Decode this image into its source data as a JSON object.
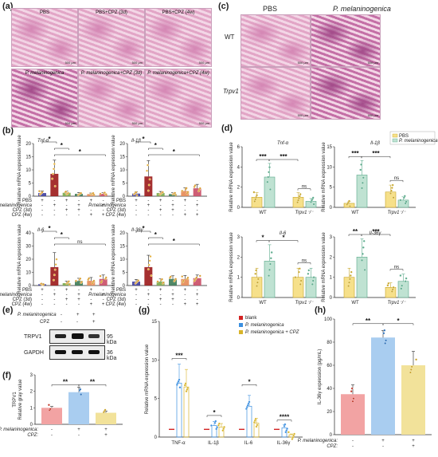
{
  "panel_labels": [
    "(a)",
    "(b)",
    "(c)",
    "(d)",
    "(e)",
    "(f)",
    "(g)",
    "(h)"
  ],
  "panel_a": {
    "images": [
      {
        "caption": "PBS",
        "scale": "500 μm"
      },
      {
        "caption": "PBS+CPZ (3d)",
        "scale": "500 μm"
      },
      {
        "caption": "PBS+CPZ (4w)",
        "scale": "500 μm"
      },
      {
        "caption": "P. melaninogenica",
        "scale": "500 μm"
      },
      {
        "caption": "P. melaninogenica+CPZ (3d)",
        "scale": "500 μm"
      },
      {
        "caption": "P. melaninogenica+CPZ (4w)",
        "scale": "500 μm"
      }
    ]
  },
  "panel_c": {
    "col_headers": [
      "PBS",
      "P. melaninogenica"
    ],
    "row_headers": [
      "WT",
      "Trpv1⁻/⁻"
    ],
    "scale": "500 μm"
  },
  "panel_b": {
    "ylabel": "Relative mRNA expression value",
    "row_labels": [
      "PBS",
      "P.melaninogenica",
      "CPZ (3d)",
      "CPZ (4w)"
    ],
    "ns": "ns",
    "star": "*"
  },
  "panel_d": {
    "ylabel": "Relative mRNA expression value",
    "legend": [
      "PBS",
      "P. melaninogenica"
    ],
    "xcats": [
      "WT",
      "Trpv1⁻/⁻"
    ],
    "ns": "ns"
  },
  "panel_e": {
    "row_labels": [
      "P. melaninogenica",
      "CPZ"
    ],
    "signs": [
      [
        "-",
        "+",
        "+"
      ],
      [
        "-",
        "-",
        "+"
      ]
    ],
    "bands": [
      {
        "name": "TRPV1",
        "kda": "95 kDa"
      },
      {
        "name": "GAPDH",
        "kda": "36 kDa"
      }
    ]
  },
  "panel_f": {
    "ylabel": "TRPV1\nRelative gray value",
    "row_labels": [
      "P. melaninogenica:",
      "CPZ:"
    ],
    "signs": [
      [
        "-",
        "+",
        "+"
      ],
      [
        "-",
        "-",
        "+"
      ]
    ],
    "stars": [
      "**",
      "**"
    ]
  },
  "panel_g": {
    "ylabel": "Relative mRNA expression value",
    "legend": [
      "blank",
      "P. melaninogenica",
      "P. melaninogenica + CPZ"
    ],
    "stars": [
      "***",
      "*",
      "*",
      "****"
    ]
  },
  "panel_h": {
    "ylabel": "IL-36γ expression (pg/mL)",
    "row_labels": [
      "P. melaninogenica:",
      "CPZ:"
    ],
    "signs": [
      [
        "-",
        "+",
        "+"
      ],
      [
        "-",
        "-",
        "+"
      ]
    ],
    "stars": [
      "**",
      "*"
    ]
  },
  "colors": {
    "pbs": "#3f3fa0",
    "pm": "#9b1a1a",
    "cpz1": "#7aa84a",
    "cpz2": "#e58a55",
    "cpz3": "#c94d66",
    "d_pbs": "#f6e08a",
    "d_pm": "#bfe2d2",
    "f_blank": "#f2a3a3",
    "f_pm": "#a9cdf0",
    "f_cpz": "#f2e29a",
    "g_blank": "#d32222",
    "g_pm": "#3b8fe0",
    "g_cpz": "#d8b42a"
  },
  "chart_data": [
    {
      "panel": "b",
      "type": "bar",
      "title": "Tnf-α",
      "categories": [
        "PBS",
        "P.m",
        "PBS+CPZ 3d",
        "P.m+CPZ 3d",
        "PBS+CPZ 4w",
        "P.m+CPZ 4w"
      ],
      "values": [
        1.2,
        8.5,
        1.3,
        0.9,
        0.8,
        0.9
      ],
      "errors": [
        0.8,
        5.2,
        0.6,
        0.5,
        0.4,
        0.5
      ],
      "ylim": [
        0,
        20
      ],
      "yticks": [
        0,
        5,
        10,
        15,
        20
      ]
    },
    {
      "panel": "b",
      "type": "bar",
      "title": "Il-1β",
      "categories": [
        "PBS",
        "P.m",
        "PBS+CPZ 3d",
        "P.m+CPZ 3d",
        "PBS+CPZ 4w",
        "P.m+CPZ 4w"
      ],
      "values": [
        1.0,
        7.5,
        1.2,
        0.8,
        2.0,
        3.0
      ],
      "errors": [
        0.7,
        6.0,
        0.6,
        0.5,
        1.2,
        1.5
      ],
      "ylim": [
        0,
        20
      ],
      "yticks": [
        0,
        5,
        10,
        15,
        20
      ]
    },
    {
      "panel": "b",
      "type": "bar",
      "title": "Il-6",
      "categories": [
        "PBS",
        "P.m",
        "PBS+CPZ 3d",
        "P.m+CPZ 3d",
        "PBS+CPZ 4w",
        "P.m+CPZ 4w"
      ],
      "values": [
        1.0,
        14.0,
        1.8,
        3.5,
        3.6,
        5.0
      ],
      "errors": [
        0.6,
        11.0,
        1.5,
        2.0,
        2.5,
        3.0
      ],
      "ylim": [
        0,
        40
      ],
      "yticks": [
        0,
        10,
        20,
        30,
        40
      ]
    },
    {
      "panel": "b",
      "type": "bar",
      "title": "Il-36γ",
      "categories": [
        "PBS",
        "P.m",
        "PBS+CPZ 3d",
        "P.m+CPZ 3d",
        "PBS+CPZ 4w",
        "P.m+CPZ 4w"
      ],
      "values": [
        1.5,
        7.0,
        1.5,
        2.5,
        2.5,
        2.8
      ],
      "errors": [
        0.8,
        4.5,
        1.0,
        1.2,
        1.3,
        1.2
      ],
      "ylim": [
        0,
        20
      ],
      "yticks": [
        0,
        5,
        10,
        15,
        20
      ]
    },
    {
      "panel": "d",
      "type": "bar",
      "title": "Tnf-α",
      "categories": [
        "WT",
        "Trpv1⁻/⁻"
      ],
      "series": [
        {
          "name": "PBS",
          "values": [
            1.0,
            1.0
          ]
        },
        {
          "name": "P. melaninogenica",
          "values": [
            3.0,
            0.6
          ]
        }
      ],
      "ylim": [
        0,
        6
      ],
      "yticks": [
        0,
        2,
        4,
        6
      ]
    },
    {
      "panel": "d",
      "type": "bar",
      "title": "Il-1β",
      "categories": [
        "WT",
        "Trpv1⁻/⁻"
      ],
      "series": [
        {
          "name": "PBS",
          "values": [
            1.0,
            3.8
          ]
        },
        {
          "name": "P. melaninogenica",
          "values": [
            8.0,
            1.8
          ]
        }
      ],
      "ylim": [
        0,
        15
      ],
      "yticks": [
        0,
        5,
        10,
        15
      ]
    },
    {
      "panel": "d",
      "type": "bar",
      "title": "Il-6",
      "categories": [
        "WT",
        "Trpv1⁻/⁻"
      ],
      "series": [
        {
          "name": "PBS",
          "values": [
            1.0,
            1.0
          ]
        },
        {
          "name": "P. melaninogenica",
          "values": [
            1.8,
            1.0
          ]
        }
      ],
      "ylim": [
        0,
        3
      ],
      "yticks": [
        0,
        1,
        2,
        3
      ]
    },
    {
      "panel": "d",
      "type": "bar",
      "title": "Il-36γ",
      "categories": [
        "WT",
        "Trpv1⁻/⁻"
      ],
      "series": [
        {
          "name": "PBS",
          "values": [
            1.0,
            0.5
          ]
        },
        {
          "name": "P. melaninogenica",
          "values": [
            2.0,
            0.8
          ]
        }
      ],
      "ylim": [
        0,
        3
      ],
      "yticks": [
        0,
        1,
        2,
        3
      ]
    },
    {
      "panel": "f",
      "type": "bar",
      "categories": [
        "-/-",
        "+/-",
        "+/+"
      ],
      "values": [
        1.0,
        1.95,
        0.7
      ],
      "errors": [
        0.08,
        0.3,
        0.1
      ],
      "ylim": [
        0,
        3
      ],
      "yticks": [
        0,
        1,
        2,
        3
      ]
    },
    {
      "panel": "g",
      "type": "bar",
      "categories": [
        "TNF-α",
        "IL-1β",
        "IL-6",
        "IL-36γ"
      ],
      "series": [
        {
          "name": "blank",
          "values": [
            1,
            1,
            1,
            1
          ]
        },
        {
          "name": "P. melaninogenica",
          "values": [
            7.0,
            1.5,
            4.0,
            1.2
          ]
        },
        {
          "name": "P. melaninogenica + CPZ",
          "values": [
            6.5,
            1.3,
            1.8,
            0.3
          ]
        }
      ],
      "ylim": [
        0,
        15
      ],
      "yticks": [
        0,
        5,
        10,
        15
      ]
    },
    {
      "panel": "h",
      "type": "bar",
      "categories": [
        "-/-",
        "+/-",
        "+/+"
      ],
      "values": [
        35,
        84,
        60
      ],
      "errors": [
        8,
        6,
        12
      ],
      "ylim": [
        0,
        100
      ],
      "yticks": [
        0,
        20,
        40,
        60,
        80,
        100
      ]
    }
  ]
}
